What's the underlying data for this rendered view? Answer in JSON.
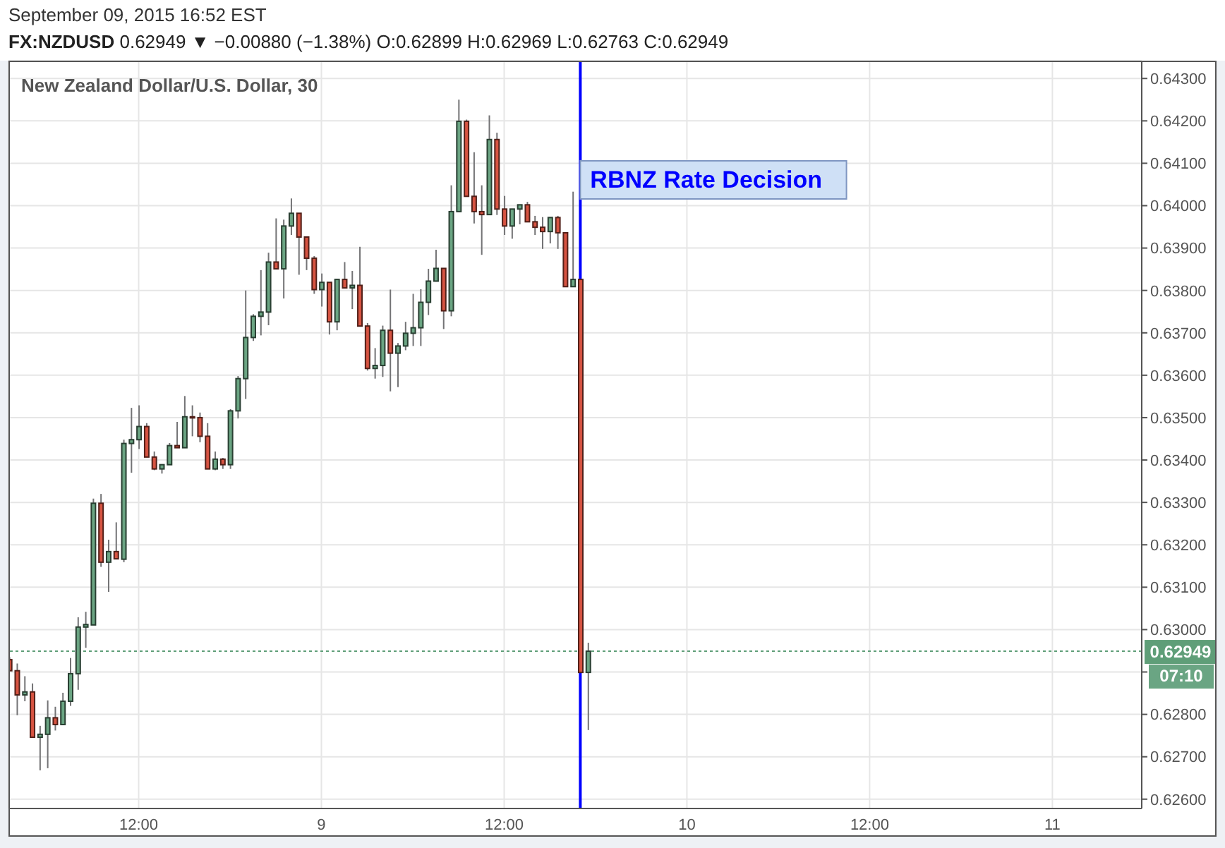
{
  "chart_data": {
    "type": "candlestick",
    "title": "September 09, 2015 16:52 EST",
    "subtitle": "FX:NZDUSD 0.62949 ▼ −0.00880 (−1.38%) O:0.62899 H:0.62969 L:0.62763 C:0.62949",
    "x": [
      "2015-09-08T03:30",
      "2015-09-08T04:00",
      "2015-09-08T04:30",
      "2015-09-08T05:00",
      "2015-09-08T05:30",
      "2015-09-08T06:00",
      "2015-09-08T06:30",
      "2015-09-08T07:00",
      "2015-09-08T07:30",
      "2015-09-08T08:00",
      "2015-09-08T08:30",
      "2015-09-08T09:00",
      "2015-09-08T09:30",
      "2015-09-08T10:00",
      "2015-09-08T10:30",
      "2015-09-08T11:00",
      "2015-09-08T11:30",
      "2015-09-08T12:00",
      "2015-09-08T12:30",
      "2015-09-08T13:00",
      "2015-09-08T13:30",
      "2015-09-08T14:00",
      "2015-09-08T14:30",
      "2015-09-08T15:00",
      "2015-09-08T15:30",
      "2015-09-08T16:00",
      "2015-09-08T16:30",
      "2015-09-08T17:00",
      "2015-09-08T17:30",
      "2015-09-08T18:00",
      "2015-09-08T18:30",
      "2015-09-08T19:00",
      "2015-09-08T19:30",
      "2015-09-08T20:00",
      "2015-09-08T20:30",
      "2015-09-08T21:00",
      "2015-09-08T21:30",
      "2015-09-08T22:00",
      "2015-09-08T22:30",
      "2015-09-08T23:00",
      "2015-09-08T23:30",
      "2015-09-09T00:00",
      "2015-09-09T00:30",
      "2015-09-09T01:00",
      "2015-09-09T01:30",
      "2015-09-09T02:00",
      "2015-09-09T02:30",
      "2015-09-09T03:00",
      "2015-09-09T03:30",
      "2015-09-09T04:00",
      "2015-09-09T04:30",
      "2015-09-09T05:00",
      "2015-09-09T05:30",
      "2015-09-09T06:00",
      "2015-09-09T06:30",
      "2015-09-09T07:00",
      "2015-09-09T07:30",
      "2015-09-09T08:00",
      "2015-09-09T08:30",
      "2015-09-09T09:00",
      "2015-09-09T09:30",
      "2015-09-09T10:00",
      "2015-09-09T10:30",
      "2015-09-09T11:00",
      "2015-09-09T11:30",
      "2015-09-09T12:00",
      "2015-09-09T12:30",
      "2015-09-09T13:00",
      "2015-09-09T13:30",
      "2015-09-09T14:00",
      "2015-09-09T14:30",
      "2015-09-09T15:00",
      "2015-09-09T15:30",
      "2015-09-09T16:00",
      "2015-09-09T16:30",
      "2015-09-09T17:00",
      "2015-09-09T17:30"
    ],
    "ohlc": [
      [
        0.62929,
        0.62935,
        0.62903,
        0.62903
      ],
      [
        0.62903,
        0.6292,
        0.62798,
        0.62846
      ],
      [
        0.62846,
        0.6289,
        0.62831,
        0.62853
      ],
      [
        0.62853,
        0.62873,
        0.62746,
        0.62746
      ],
      [
        0.62746,
        0.62773,
        0.62668,
        0.62753
      ],
      [
        0.62753,
        0.62833,
        0.62673,
        0.62792
      ],
      [
        0.62792,
        0.62818,
        0.62762,
        0.62776
      ],
      [
        0.62776,
        0.62851,
        0.62776,
        0.62831
      ],
      [
        0.62831,
        0.62933,
        0.6282,
        0.62896
      ],
      [
        0.62896,
        0.63029,
        0.62858,
        0.63006
      ],
      [
        0.63006,
        0.63042,
        0.62957,
        0.63012
      ],
      [
        0.63011,
        0.63309,
        0.63011,
        0.63298
      ],
      [
        0.63298,
        0.6332,
        0.63148,
        0.63159
      ],
      [
        0.63159,
        0.63212,
        0.63089,
        0.63184
      ],
      [
        0.63184,
        0.63253,
        0.63166,
        0.63167
      ],
      [
        0.63166,
        0.63448,
        0.63159,
        0.63439
      ],
      [
        0.63439,
        0.63523,
        0.6337,
        0.63448
      ],
      [
        0.63448,
        0.63529,
        0.63426,
        0.63479
      ],
      [
        0.63479,
        0.63487,
        0.63407,
        0.63407
      ],
      [
        0.63407,
        0.6342,
        0.63376,
        0.63379
      ],
      [
        0.63379,
        0.63389,
        0.63368,
        0.63389
      ],
      [
        0.63389,
        0.6344,
        0.63389,
        0.63434
      ],
      [
        0.63434,
        0.6349,
        0.63429,
        0.63429
      ],
      [
        0.63429,
        0.63551,
        0.63429,
        0.63502
      ],
      [
        0.63502,
        0.63529,
        0.63456,
        0.635
      ],
      [
        0.635,
        0.63512,
        0.63442,
        0.63456
      ],
      [
        0.63456,
        0.63487,
        0.63379,
        0.63379
      ],
      [
        0.63379,
        0.6342,
        0.63376,
        0.63402
      ],
      [
        0.63402,
        0.63405,
        0.63379,
        0.63389
      ],
      [
        0.63389,
        0.6352,
        0.63379,
        0.63516
      ],
      [
        0.63516,
        0.63598,
        0.63498,
        0.63592
      ],
      [
        0.63592,
        0.638,
        0.63544,
        0.63689
      ],
      [
        0.63689,
        0.63744,
        0.63681,
        0.63739
      ],
      [
        0.63739,
        0.63848,
        0.63694,
        0.63749
      ],
      [
        0.63749,
        0.63889,
        0.63718,
        0.63867
      ],
      [
        0.63867,
        0.6397,
        0.63851,
        0.63851
      ],
      [
        0.63851,
        0.63967,
        0.63781,
        0.63952
      ],
      [
        0.63952,
        0.64017,
        0.63931,
        0.63982
      ],
      [
        0.63982,
        0.63982,
        0.63837,
        0.63926
      ],
      [
        0.63926,
        0.63926,
        0.63848,
        0.63876
      ],
      [
        0.63876,
        0.63881,
        0.63792,
        0.63802
      ],
      [
        0.63802,
        0.6384,
        0.63762,
        0.63819
      ],
      [
        0.63819,
        0.63819,
        0.63696,
        0.63726
      ],
      [
        0.63726,
        0.63826,
        0.63706,
        0.63826
      ],
      [
        0.63826,
        0.63867,
        0.63806,
        0.63806
      ],
      [
        0.63806,
        0.63846,
        0.63756,
        0.63812
      ],
      [
        0.63812,
        0.63903,
        0.63716,
        0.63716
      ],
      [
        0.63716,
        0.63723,
        0.63611,
        0.63616
      ],
      [
        0.63616,
        0.63664,
        0.63592,
        0.63623
      ],
      [
        0.63623,
        0.63717,
        0.63596,
        0.63706
      ],
      [
        0.63706,
        0.63802,
        0.63562,
        0.63652
      ],
      [
        0.63652,
        0.63676,
        0.63572,
        0.63669
      ],
      [
        0.63669,
        0.63726,
        0.63659,
        0.63699
      ],
      [
        0.63699,
        0.63792,
        0.63669,
        0.63712
      ],
      [
        0.63712,
        0.63803,
        0.63669,
        0.63772
      ],
      [
        0.63772,
        0.63851,
        0.63742,
        0.63822
      ],
      [
        0.63822,
        0.63896,
        0.63822,
        0.63852
      ],
      [
        0.63852,
        0.63852,
        0.63709,
        0.63752
      ],
      [
        0.63752,
        0.64048,
        0.63739,
        0.63986
      ],
      [
        0.63986,
        0.6425,
        0.63986,
        0.64199
      ],
      [
        0.64199,
        0.64203,
        0.64022,
        0.64022
      ],
      [
        0.64022,
        0.64126,
        0.63958,
        0.63986
      ],
      [
        0.63986,
        0.64048,
        0.63884,
        0.63979
      ],
      [
        0.63979,
        0.64213,
        0.63979,
        0.64156
      ],
      [
        0.64156,
        0.64172,
        0.63978,
        0.63992
      ],
      [
        0.63992,
        0.64023,
        0.63931,
        0.63952
      ],
      [
        0.63952,
        0.63992,
        0.63922,
        0.63992
      ],
      [
        0.63992,
        0.64002,
        0.63956,
        0.64002
      ],
      [
        0.64002,
        0.64009,
        0.63962,
        0.63962
      ],
      [
        0.63962,
        0.63976,
        0.63931,
        0.63949
      ],
      [
        0.63949,
        0.63973,
        0.63898,
        0.63939
      ],
      [
        0.63939,
        0.63972,
        0.63911,
        0.63972
      ],
      [
        0.63972,
        0.63976,
        0.63898,
        0.63936
      ],
      [
        0.63936,
        0.63936,
        0.63809,
        0.63809
      ],
      [
        0.63809,
        0.64033,
        0.63809,
        0.63826
      ],
      [
        0.63826,
        0.63826,
        0.62899,
        0.62899
      ],
      [
        0.62899,
        0.62969,
        0.62763,
        0.62949
      ]
    ],
    "colors": [
      "#d75442",
      "#d75442",
      "#6ba583",
      "#d75442",
      "#6ba583",
      "#6ba583",
      "#d75442",
      "#6ba583",
      "#6ba583",
      "#6ba583",
      "#6ba583",
      "#6ba583",
      "#d75442",
      "#6ba583",
      "#d75442",
      "#6ba583",
      "#6ba583",
      "#6ba583",
      "#d75442",
      "#d75442",
      "#6ba583",
      "#6ba583",
      "#d75442",
      "#6ba583",
      "#d75442",
      "#d75442",
      "#d75442",
      "#6ba583",
      "#d75442",
      "#6ba583",
      "#6ba583",
      "#6ba583",
      "#6ba583",
      "#6ba583",
      "#6ba583",
      "#d75442",
      "#6ba583",
      "#6ba583",
      "#d75442",
      "#d75442",
      "#d75442",
      "#6ba583",
      "#d75442",
      "#6ba583",
      "#d75442",
      "#6ba583",
      "#d75442",
      "#d75442",
      "#6ba583",
      "#6ba583",
      "#d75442",
      "#6ba583",
      "#6ba583",
      "#6ba583",
      "#6ba583",
      "#6ba583",
      "#6ba583",
      "#d75442",
      "#6ba583",
      "#6ba583",
      "#d75442",
      "#d75442",
      "#d75442",
      "#6ba583",
      "#d75442",
      "#d75442",
      "#6ba583",
      "#6ba583",
      "#d75442",
      "#d75442",
      "#d75442",
      "#6ba583",
      "#d75442",
      "#d75442",
      "#6ba583",
      "#d75442",
      "#6ba583"
    ],
    "xlim": [
      "2015-09-08T03:27",
      "2015-09-11T05:52"
    ],
    "xticks": [
      {
        "value": "2015-09-08T12:00",
        "label": "12:00"
      },
      {
        "value": "2015-09-09",
        "label": "9"
      },
      {
        "value": "2015-09-09T12:00",
        "label": "12:00"
      },
      {
        "value": "2015-09-10",
        "label": "10"
      },
      {
        "value": "2015-09-10T12:00",
        "label": "12:00"
      },
      {
        "value": "2015-09-11",
        "label": "11"
      }
    ],
    "ylim": [
      0.62578,
      0.64342
    ],
    "yticks": [
      {
        "value": 0.626,
        "label": "0.62600"
      },
      {
        "value": 0.627,
        "label": "0.62700"
      },
      {
        "value": 0.628,
        "label": "0.62800"
      },
      {
        "value": 0.629,
        "label": null
      },
      {
        "value": 0.63,
        "label": "0.63000"
      },
      {
        "value": 0.631,
        "label": "0.63100"
      },
      {
        "value": 0.632,
        "label": "0.63200"
      },
      {
        "value": 0.633,
        "label": "0.63300"
      },
      {
        "value": 0.634,
        "label": "0.63400"
      },
      {
        "value": 0.635,
        "label": "0.63500"
      },
      {
        "value": 0.636,
        "label": "0.63600"
      },
      {
        "value": 0.637,
        "label": "0.63700"
      },
      {
        "value": 0.638,
        "label": "0.63800"
      },
      {
        "value": 0.639,
        "label": "0.63900"
      },
      {
        "value": 0.64,
        "label": "0.64000"
      },
      {
        "value": 0.641,
        "label": "0.64100"
      },
      {
        "value": 0.642,
        "label": "0.64200"
      },
      {
        "value": 0.643,
        "label": "0.64300"
      }
    ],
    "grid": true,
    "ref_lines": [
      {
        "axis": "x",
        "value": "2015-09-09T17:00",
        "label": "RBNZ Rate Decision",
        "color": "#0000ff"
      },
      {
        "axis": "y",
        "value": 0.62949,
        "label": "0.62949",
        "color": "#5f9e78",
        "line_style": "dotted"
      }
    ],
    "annotations": [
      "New Zealand Dollar/U.S. Dollar, 30",
      "07:10"
    ]
  }
}
